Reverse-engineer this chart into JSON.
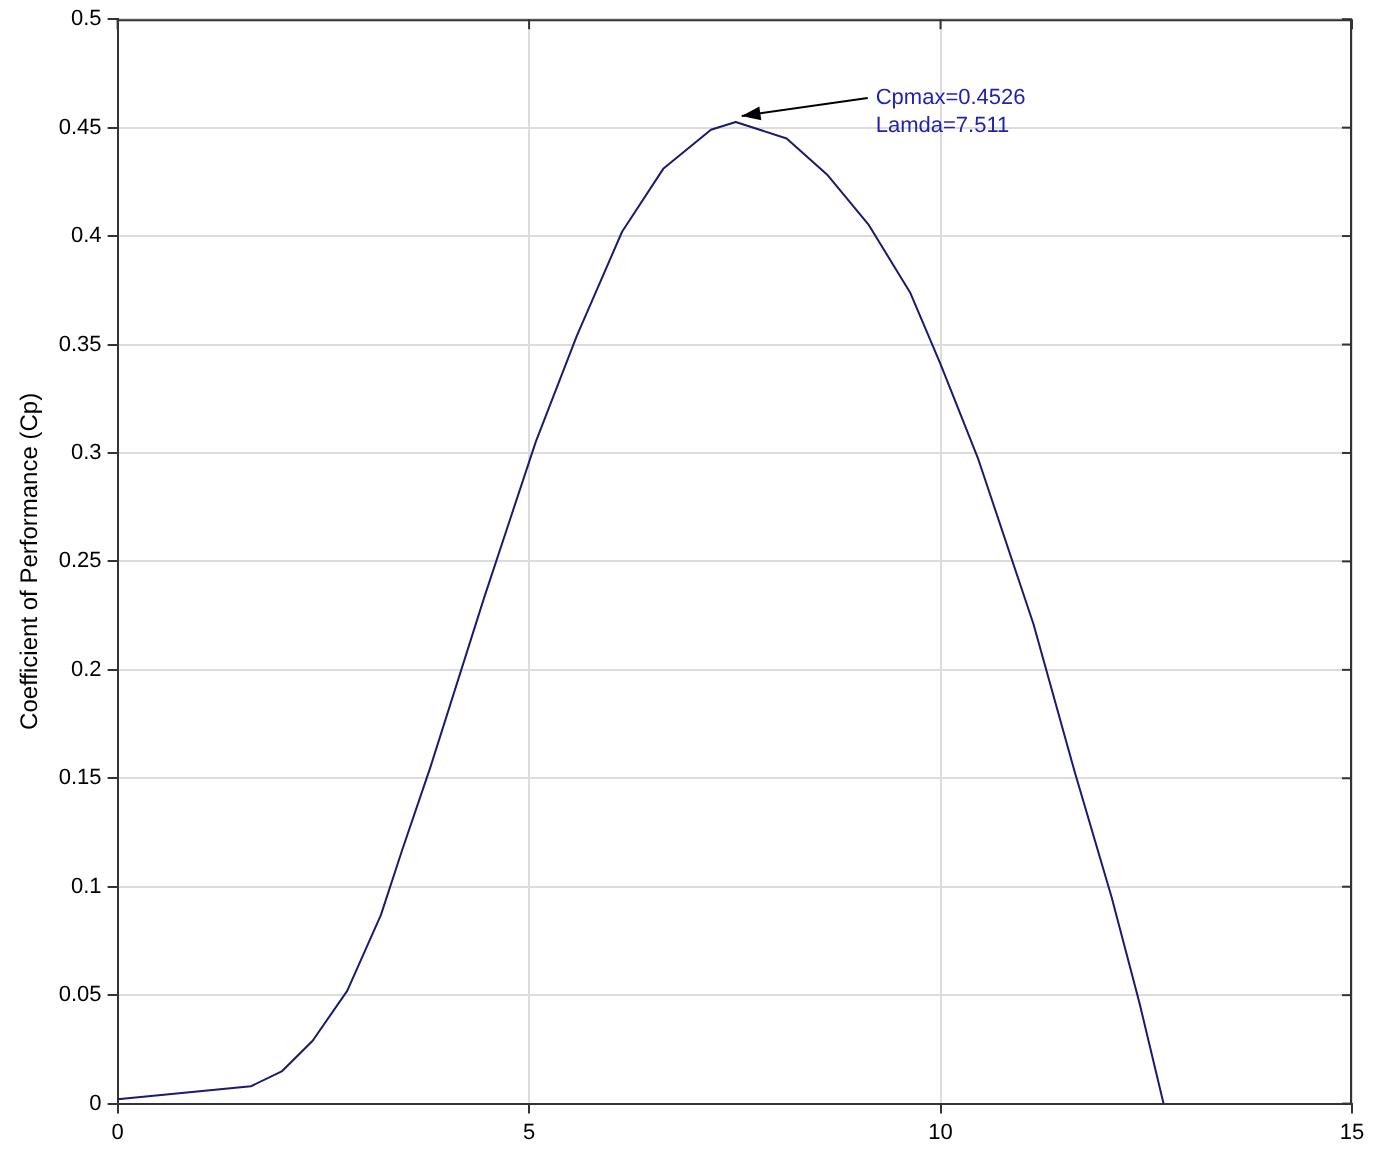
{
  "chart_data": {
    "type": "line",
    "ylabel": "Coefficient of Performance (Cp)",
    "x": [
      0,
      1.62,
      2.0,
      2.37,
      2.79,
      3.2,
      3.45,
      3.8,
      4.46,
      5.08,
      5.58,
      6.13,
      6.63,
      7.21,
      7.511,
      8.13,
      8.63,
      9.13,
      9.63,
      10.0,
      10.46,
      11.13,
      11.63,
      12.08,
      12.42,
      12.71
    ],
    "series": [
      {
        "color": "#1a1a6e",
        "values": [
          0.002,
          0.008,
          0.015,
          0.029,
          0.052,
          0.087,
          0.116,
          0.155,
          0.234,
          0.305,
          0.354,
          0.402,
          0.431,
          0.449,
          0.4526,
          0.445,
          0.428,
          0.405,
          0.374,
          0.341,
          0.297,
          0.221,
          0.153,
          0.095,
          0.046,
          0
        ]
      }
    ],
    "xlim": [
      0,
      15
    ],
    "xticks": [
      0,
      5,
      10,
      15
    ],
    "ylim": [
      0,
      0.5
    ],
    "yticks": [
      0,
      0.05,
      0.1,
      0.15,
      0.2,
      0.25,
      0.3,
      0.35,
      0.4,
      0.45,
      0.5
    ],
    "grid": true,
    "marker": "none",
    "line_style": "solid",
    "legend": false,
    "annotations": [
      {
        "text": "Cpmax=0.4526\nLamda=7.511",
        "x": 7.511,
        "y": 0.4526
      }
    ]
  }
}
